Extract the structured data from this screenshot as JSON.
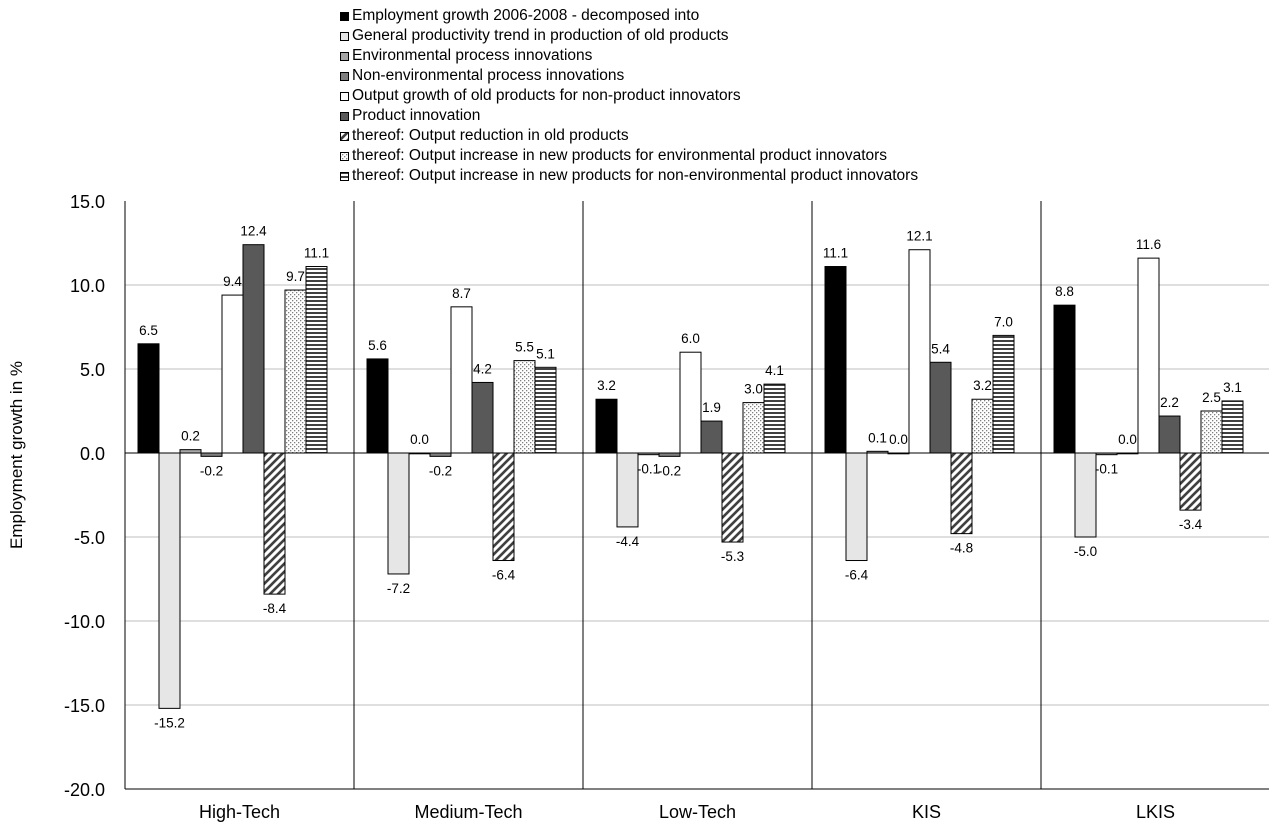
{
  "chart_data": {
    "type": "bar",
    "title": "",
    "xlabel": "",
    "ylabel": "Employment growth in %",
    "ylim": [
      -20.0,
      15.0
    ],
    "yticks": [
      "15.0",
      "10.0",
      "5.0",
      "0.0",
      "-5.0",
      "-10.0",
      "-15.0",
      "-20.0"
    ],
    "grid": true,
    "legend_position": "top",
    "categories": [
      "High-Tech",
      "Medium-Tech",
      "Low-Tech",
      "KIS",
      "LKIS"
    ],
    "series": [
      {
        "name": "Employment growth 2006-2008 - decomposed into",
        "fill": "solid",
        "color": "#000000",
        "values": [
          6.5,
          5.6,
          3.2,
          11.1,
          8.8
        ],
        "labels": [
          "6.5",
          "5.6",
          "3.2",
          "11.1",
          "8.8"
        ]
      },
      {
        "name": "General productivity trend in production of old products",
        "fill": "solid",
        "color": "#e6e6e6",
        "values": [
          -15.2,
          -7.2,
          -4.4,
          -6.4,
          -5.0
        ],
        "labels": [
          "-15.2",
          "-7.2",
          "-4.4",
          "-6.4",
          "-5.0"
        ]
      },
      {
        "name": "Environmental process innovations",
        "fill": "solid",
        "color": "#a6a6a6",
        "values": [
          0.2,
          0.0,
          -0.1,
          0.1,
          -0.1
        ],
        "labels": [
          "0.2",
          "0.0",
          "-0.1",
          "0.1",
          "-0.1"
        ]
      },
      {
        "name": "Non-environmental process innovations",
        "fill": "solid",
        "color": "#7f7f7f",
        "values": [
          -0.2,
          -0.2,
          -0.2,
          0.0,
          0.0
        ],
        "labels": [
          "-0.2",
          "-0.2",
          "-0.2",
          "0.0",
          "0.0"
        ]
      },
      {
        "name": "Output growth of old products for non-product innovators",
        "fill": "solid",
        "color": "#ffffff",
        "values": [
          9.4,
          8.7,
          6.0,
          12.1,
          11.6
        ],
        "labels": [
          "9.4",
          "8.7",
          "6.0",
          "12.1",
          "11.6"
        ]
      },
      {
        "name": "Product innovation",
        "fill": "solid",
        "color": "#595959",
        "values": [
          12.4,
          4.2,
          1.9,
          5.4,
          2.2
        ],
        "labels": [
          "12.4",
          "4.2",
          "1.9",
          "5.4",
          "2.2"
        ]
      },
      {
        "name": "thereof: Output reduction in old products",
        "fill": "diagonal",
        "color": "#404040",
        "values": [
          -8.4,
          -6.4,
          -5.3,
          -4.8,
          -3.4
        ],
        "labels": [
          "-8.4",
          "-6.4",
          "-5.3",
          "-4.8",
          "-3.4"
        ]
      },
      {
        "name": "thereof: Output increase in new products for environmental product innovators",
        "fill": "dotted",
        "color": "#808080",
        "values": [
          9.7,
          5.5,
          3.0,
          3.2,
          2.5
        ],
        "labels": [
          "9.7",
          "5.5",
          "3.0",
          "3.2",
          "2.5"
        ]
      },
      {
        "name": "thereof: Output increase in new products for non-environmental product innovators",
        "fill": "horizontal",
        "color": "#404040",
        "values": [
          11.1,
          5.1,
          4.1,
          7.0,
          3.1
        ],
        "labels": [
          "11.1",
          "5.1",
          "4.1",
          "7.0",
          "3.1"
        ]
      }
    ]
  }
}
